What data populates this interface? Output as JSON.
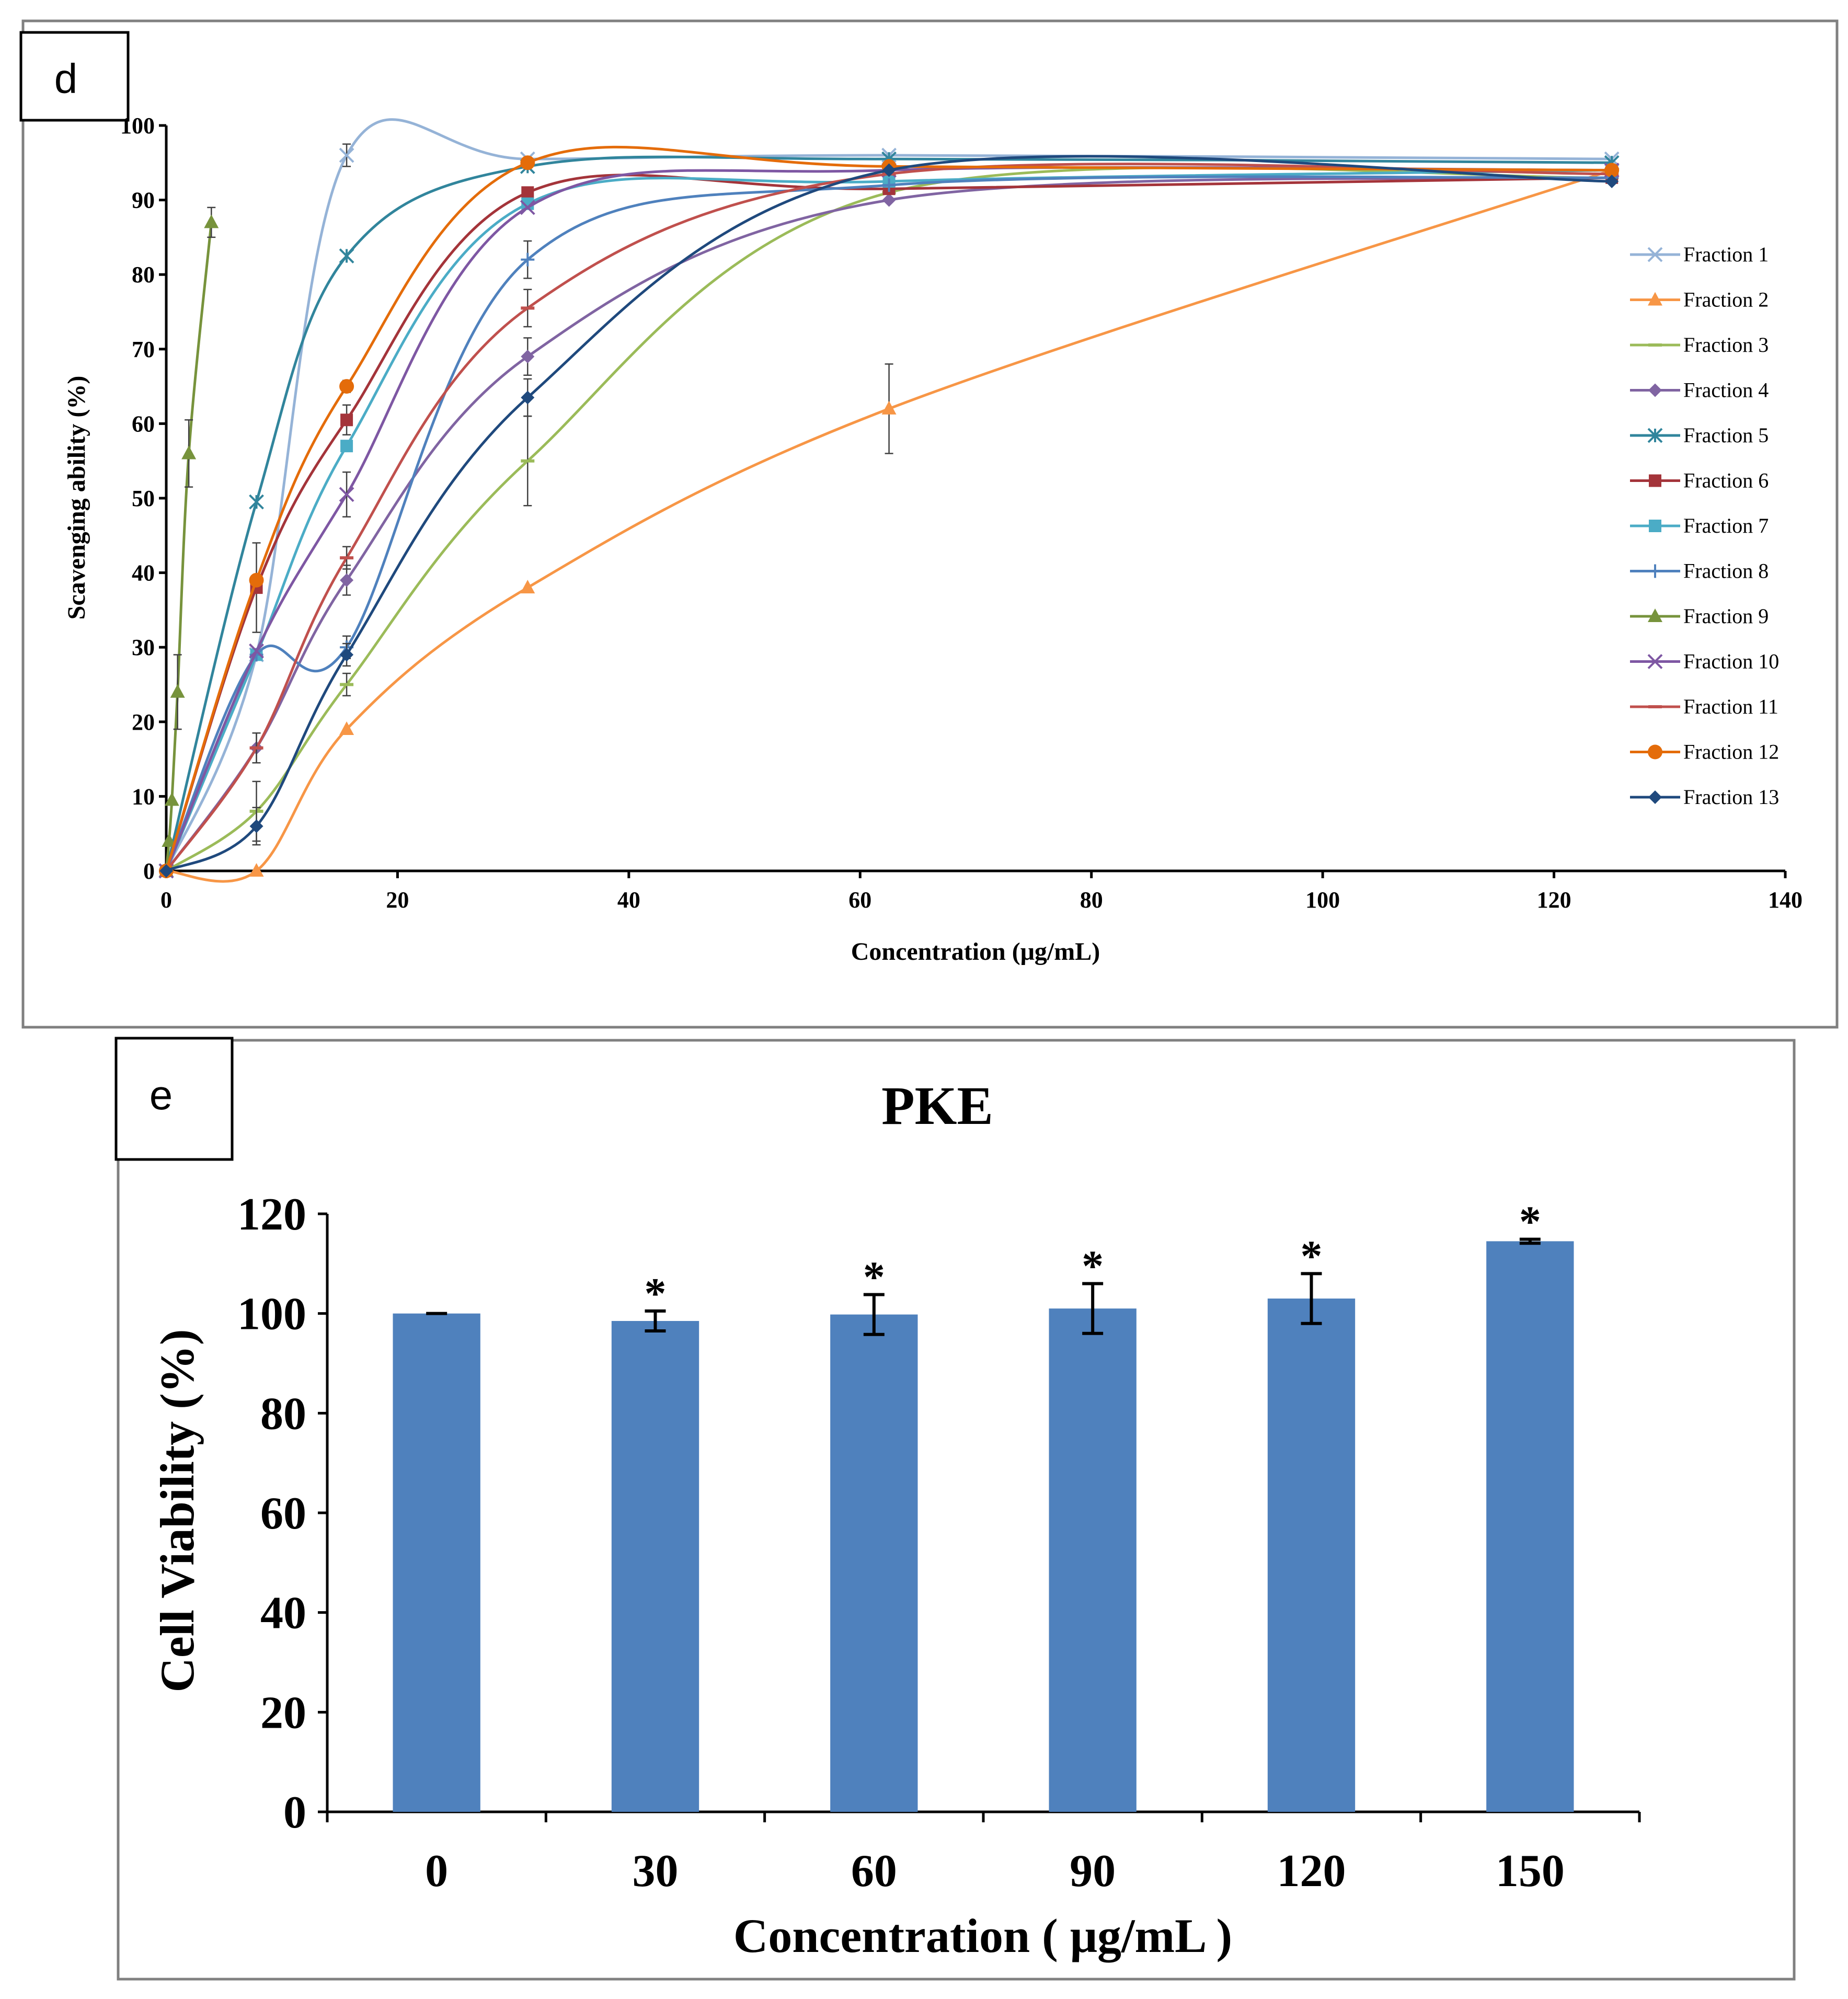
{
  "chart_data": [
    {
      "panel_label": "d",
      "type": "line",
      "xlabel": "Concentration (μg/mL)",
      "ylabel": "Scavenging ability (%)",
      "xlim": [
        0,
        140
      ],
      "ylim": [
        0,
        100
      ],
      "x_ticks": [
        "0",
        "20",
        "40",
        "60",
        "80",
        "100",
        "120",
        "140"
      ],
      "y_ticks": [
        "0",
        "10",
        "20",
        "30",
        "40",
        "50",
        "60",
        "70",
        "80",
        "90",
        "100"
      ],
      "legend_position": "right",
      "series": [
        {
          "name": "Fraction 1",
          "color": "#95B3D7",
          "marker": "x",
          "x": [
            0,
            7.8,
            15.6,
            31.25,
            62.5,
            125
          ],
          "y": [
            0,
            29,
            96,
            95.5,
            96,
            95.5
          ],
          "err": [
            0,
            0,
            1.5,
            0,
            0,
            0
          ]
        },
        {
          "name": "Fraction 2",
          "color": "#F79646",
          "marker": "triangle",
          "x": [
            0,
            7.8,
            15.6,
            31.25,
            62.5,
            125
          ],
          "y": [
            0,
            0,
            19,
            38,
            62,
            94
          ],
          "err": [
            0,
            0,
            0,
            0,
            6,
            0
          ]
        },
        {
          "name": "Fraction 3",
          "color": "#9BBB59",
          "marker": "dash",
          "x": [
            0,
            7.8,
            15.6,
            31.25,
            62.5,
            125
          ],
          "y": [
            0,
            8,
            25,
            55,
            91,
            93
          ],
          "err": [
            0,
            4,
            1.5,
            6,
            0,
            0
          ]
        },
        {
          "name": "Fraction 4",
          "color": "#8064A2",
          "marker": "diamond",
          "x": [
            0,
            7.8,
            15.6,
            31.25,
            62.5,
            125
          ],
          "y": [
            0,
            16.5,
            39,
            69,
            90,
            93
          ],
          "err": [
            0,
            2,
            2,
            2.5,
            0,
            0
          ]
        },
        {
          "name": "Fraction 5",
          "color": "#31859C",
          "marker": "star",
          "x": [
            0,
            7.8,
            15.6,
            31.25,
            62.5,
            125
          ],
          "y": [
            0,
            49.5,
            82.5,
            94.5,
            95.5,
            95
          ],
          "err": [
            0,
            0,
            0,
            0,
            0,
            0
          ]
        },
        {
          "name": "Fraction 6",
          "color": "#A4343A",
          "marker": "square",
          "x": [
            0,
            7.8,
            15.6,
            31.25,
            62.5,
            125
          ],
          "y": [
            0,
            38,
            60.5,
            91,
            91.5,
            93
          ],
          "err": [
            0,
            6,
            2,
            0,
            0,
            0
          ]
        },
        {
          "name": "Fraction 7",
          "color": "#4BACC6",
          "marker": "square",
          "x": [
            0,
            7.8,
            15.6,
            31.25,
            62.5,
            125
          ],
          "y": [
            0,
            29,
            57,
            89.5,
            92.5,
            94
          ],
          "err": [
            0,
            0,
            0,
            0,
            0,
            0
          ]
        },
        {
          "name": "Fraction 8",
          "color": "#4F81BD",
          "marker": "plus",
          "x": [
            0,
            7.8,
            15.6,
            31.25,
            62.5,
            125
          ],
          "y": [
            0,
            29,
            30,
            82,
            92,
            93
          ],
          "err": [
            0,
            0,
            1.5,
            2.5,
            0,
            0
          ]
        },
        {
          "name": "Fraction 9",
          "color": "#77933C",
          "marker": "triangle",
          "x": [
            0,
            0.24,
            0.49,
            0.98,
            1.95,
            3.9
          ],
          "y": [
            0,
            4,
            9.5,
            24,
            56,
            87
          ],
          "err": [
            0,
            0,
            0,
            5,
            4.5,
            2
          ]
        },
        {
          "name": "Fraction 10",
          "color": "#7E57A3",
          "marker": "x",
          "x": [
            0,
            7.8,
            15.6,
            31.25,
            62.5,
            125
          ],
          "y": [
            0,
            29.5,
            50.5,
            89,
            94,
            94
          ],
          "err": [
            0,
            0,
            3,
            0,
            0,
            0
          ]
        },
        {
          "name": "Fraction 11",
          "color": "#C0504D",
          "marker": "dash",
          "x": [
            0,
            7.8,
            15.6,
            31.25,
            62.5,
            125
          ],
          "y": [
            0,
            16.5,
            42,
            75.5,
            93.5,
            93.5
          ],
          "err": [
            0,
            2,
            1.5,
            2.5,
            0,
            0
          ]
        },
        {
          "name": "Fraction  12",
          "color": "#E46C0A",
          "marker": "circle",
          "x": [
            0,
            7.8,
            15.6,
            31.25,
            62.5,
            125
          ],
          "y": [
            0,
            39,
            65,
            95,
            94.5,
            94
          ],
          "err": [
            0,
            0,
            0.8,
            0,
            0,
            0
          ]
        },
        {
          "name": "Fraction 13",
          "color": "#1F497D",
          "marker": "diamond",
          "x": [
            0,
            7.8,
            15.6,
            31.25,
            62.5,
            125
          ],
          "y": [
            0,
            6,
            29,
            63.5,
            94,
            92.5
          ],
          "err": [
            0,
            2.5,
            1.5,
            2.5,
            0,
            0
          ]
        }
      ]
    },
    {
      "panel_label": "e",
      "type": "bar",
      "title": "PKE",
      "xlabel": "Concentration ( μg/mL )",
      "ylabel": "Cell Viability (%)",
      "ylim": [
        0,
        120
      ],
      "y_ticks": [
        "0",
        "20",
        "40",
        "60",
        "80",
        "100",
        "120"
      ],
      "categories": [
        "0",
        "30",
        "60",
        "90",
        "120",
        "150"
      ],
      "values": [
        100,
        98.5,
        99.8,
        101,
        103,
        114.5
      ],
      "errors": [
        0,
        2,
        4,
        5,
        5,
        0.4
      ],
      "significance": [
        "",
        "*",
        "*",
        "*",
        "*",
        "*"
      ],
      "bar_color": "#4F81BD"
    }
  ]
}
